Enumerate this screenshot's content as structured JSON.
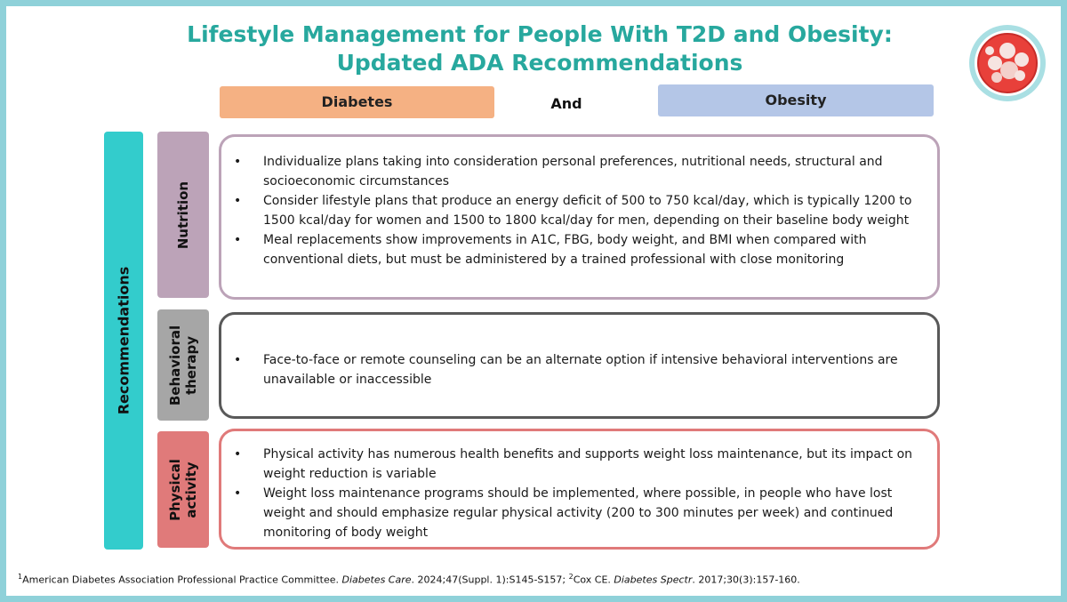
{
  "title": {
    "line1": "Lifestyle Management for People With T2D and Obesity:",
    "line2": "Updated ADA Recommendations"
  },
  "header": {
    "left_label": "Diabetes",
    "connector": "And",
    "right_label": "Obesity"
  },
  "side_label": "Recommendations",
  "colors": {
    "title": "#27a89e",
    "diabetes": "#f5b183",
    "obesity": "#b4c6e7",
    "recommendations": "#33cccc",
    "nutrition": "#bca3b8",
    "behavioral": "#a6a6a6",
    "physical": "#e07a7a",
    "frame": "#8fd1d9"
  },
  "sections": [
    {
      "label_lines": [
        "Nutrition"
      ],
      "bullets": [
        "Individualize plans taking into consideration personal preferences, nutritional needs, structural and socioeconomic circumstances",
        "Consider lifestyle plans that produce an energy deficit of 500 to 750 kcal/day, which is typically 1200 to 1500 kcal/day for women and 1500 to 1800 kcal/day for men, depending on their baseline body weight",
        "Meal replacements show improvements in A1C, FBG, body weight, and BMI when compared with conventional diets, but must be administered by a trained professional with close monitoring"
      ]
    },
    {
      "label_lines": [
        "Behavioral",
        "therapy"
      ],
      "bullets": [
        "Face-to-face or remote counseling can be an alternate option if intensive behavioral interventions are unavailable or inaccessible"
      ]
    },
    {
      "label_lines": [
        "Physical",
        "activity"
      ],
      "bullets": [
        "Physical activity has numerous health benefits and supports weight loss maintenance, but its impact on weight reduction is variable",
        "Weight loss maintenance programs should be implemented, where possible, in people who have lost weight and should emphasize regular physical activity (200 to 300 minutes per week) and continued monitoring of body weight"
      ]
    }
  ],
  "footnote": {
    "ref1_num": "1",
    "ref1_text": "American Diabetes Association Professional Practice Committee. ",
    "ref1_journal": "Diabetes Care",
    "ref1_details": ". 2024;47(Suppl. 1):S145-S157; ",
    "ref2_num": "2",
    "ref2_text": "Cox CE. ",
    "ref2_journal": "Diabetes Spectr",
    "ref2_details": ". 2017;30(3):157-160."
  },
  "icons": {
    "logo": "fat-cell-logo-icon"
  }
}
